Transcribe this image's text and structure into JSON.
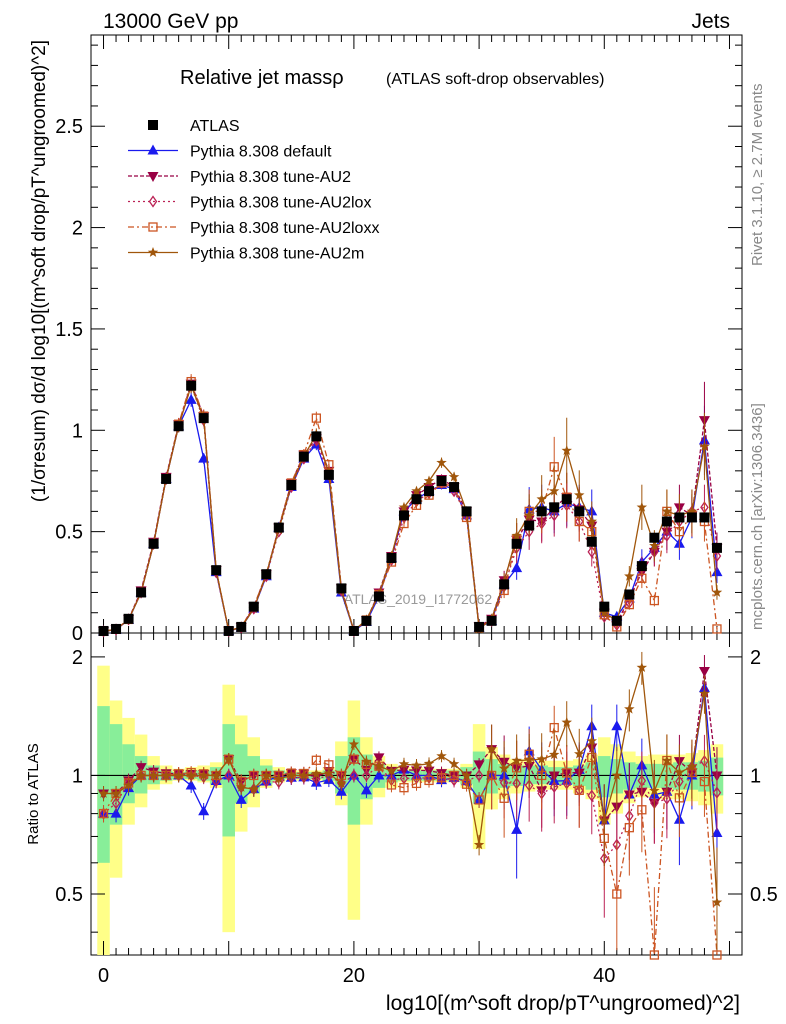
{
  "header": {
    "left": "13000 GeV pp",
    "right": "Jets"
  },
  "side_text": {
    "rivet": "Rivet 3.1.10, ≥ 2.7M events",
    "mcplots": "mcplots.cern.ch [arXiv:1306.3436]"
  },
  "watermark": "ATLAS_2019_I1772062",
  "chart_data": {
    "type": "line",
    "title": "Relative jet massρ",
    "subtitle": "(ATLAS soft-drop observables)",
    "xlabel": "log10[(m^soft drop/pT^ungroomed)^2]",
    "ylabel": "(1/σresum) dσ/d log10[(m^soft drop/pT^ungroomed)^2]",
    "ratio_ylabel": "Ratio to ATLAS",
    "xlim": [
      -1,
      51
    ],
    "ylim": [
      0,
      2.95
    ],
    "ratio_ylim": [
      0.35,
      2.3
    ],
    "x_ticks": [
      0,
      20,
      40
    ],
    "y_ticks": [
      "0",
      "0.5",
      "1",
      "1.5",
      "2",
      "2.5"
    ],
    "ratio_y_ticks": [
      "0.5",
      "1",
      "2"
    ],
    "x": [
      0,
      1,
      2,
      3,
      4,
      5,
      6,
      7,
      8,
      9,
      10,
      11,
      12,
      13,
      14,
      15,
      16,
      17,
      18,
      19,
      20,
      21,
      22,
      23,
      24,
      25,
      26,
      27,
      28,
      29,
      30,
      31,
      32,
      33,
      34,
      35,
      36,
      37,
      38,
      39,
      40,
      41,
      42,
      43,
      44,
      45,
      46,
      47,
      48,
      49
    ],
    "legend_position": "top-left",
    "series": [
      {
        "name": "ATLAS",
        "color": "#000000",
        "marker": "square",
        "dash": "none",
        "values": [
          0.01,
          0.02,
          0.07,
          0.2,
          0.44,
          0.76,
          1.02,
          1.22,
          1.06,
          0.31,
          0.01,
          0.03,
          0.13,
          0.29,
          0.52,
          0.73,
          0.87,
          0.97,
          0.78,
          0.22,
          0.01,
          0.06,
          0.18,
          0.37,
          0.58,
          0.66,
          0.7,
          0.75,
          0.72,
          0.6,
          0.03,
          0.06,
          0.24,
          0.44,
          0.53,
          0.6,
          0.62,
          0.66,
          0.6,
          0.45,
          0.13,
          0.06,
          0.19,
          0.33,
          0.47,
          0.55,
          0.57,
          0.57,
          0.57,
          0.42
        ]
      },
      {
        "name": "Pythia 8.308 default",
        "color": "#1a1aee",
        "marker": "triangle",
        "dash": "none",
        "values": [
          0.008,
          0.016,
          0.065,
          0.2,
          0.44,
          0.76,
          1.02,
          1.15,
          0.86,
          0.3,
          0.01,
          0.026,
          0.12,
          0.28,
          0.52,
          0.72,
          0.86,
          0.93,
          0.76,
          0.2,
          0.01,
          0.055,
          0.18,
          0.37,
          0.6,
          0.66,
          0.7,
          0.73,
          0.71,
          0.58,
          0.026,
          0.06,
          0.24,
          0.32,
          0.61,
          0.62,
          0.6,
          0.64,
          0.62,
          0.6,
          0.1,
          0.08,
          0.17,
          0.35,
          0.42,
          0.5,
          0.44,
          0.57,
          0.95,
          0.3
        ]
      },
      {
        "name": "Pythia 8.308 tune-AU2",
        "color": "#990044",
        "marker": "triangle-down",
        "dash": "4,2",
        "values": [
          0.009,
          0.018,
          0.068,
          0.21,
          0.45,
          0.77,
          1.03,
          1.23,
          1.07,
          0.31,
          0.011,
          0.029,
          0.13,
          0.29,
          0.52,
          0.74,
          0.88,
          0.96,
          0.8,
          0.22,
          0.011,
          0.062,
          0.2,
          0.38,
          0.6,
          0.68,
          0.72,
          0.76,
          0.72,
          0.6,
          0.032,
          0.07,
          0.26,
          0.46,
          0.56,
          0.55,
          0.62,
          0.67,
          0.61,
          0.53,
          0.1,
          0.05,
          0.17,
          0.3,
          0.4,
          0.5,
          0.62,
          0.58,
          1.05,
          0.42
        ]
      },
      {
        "name": "Pythia 8.308 tune-AU2lox",
        "color": "#bb2255",
        "marker": "diamond",
        "dash": "2,3",
        "values": [
          0.008,
          0.017,
          0.067,
          0.2,
          0.44,
          0.76,
          1.02,
          1.22,
          1.05,
          0.3,
          0.01,
          0.028,
          0.12,
          0.28,
          0.5,
          0.72,
          0.86,
          0.95,
          0.78,
          0.21,
          0.01,
          0.06,
          0.19,
          0.36,
          0.57,
          0.65,
          0.69,
          0.74,
          0.7,
          0.58,
          0.03,
          0.06,
          0.23,
          0.42,
          0.5,
          0.54,
          0.58,
          0.63,
          0.55,
          0.4,
          0.08,
          0.04,
          0.15,
          0.32,
          0.4,
          0.48,
          0.55,
          0.6,
          0.62,
          0.38
        ]
      },
      {
        "name": "Pythia 8.308 tune-AU2loxx",
        "color": "#cc5522",
        "marker": "square-open",
        "dash": "6,3,2,3",
        "values": [
          0.008,
          0.018,
          0.067,
          0.2,
          0.44,
          0.76,
          1.03,
          1.24,
          1.07,
          0.31,
          0.011,
          0.029,
          0.13,
          0.29,
          0.52,
          0.74,
          0.88,
          1.06,
          0.83,
          0.22,
          0.011,
          0.064,
          0.19,
          0.35,
          0.54,
          0.63,
          0.68,
          0.74,
          0.72,
          0.57,
          0.026,
          0.06,
          0.21,
          0.46,
          0.6,
          0.6,
          0.82,
          0.67,
          0.55,
          0.5,
          0.09,
          0.03,
          0.14,
          0.27,
          0.16,
          0.6,
          0.5,
          0.58,
          0.55,
          0.02
        ]
      },
      {
        "name": "Pythia 8.308 tune-AU2m",
        "color": "#a0560b",
        "marker": "star",
        "dash": "none",
        "values": [
          0.009,
          0.018,
          0.066,
          0.2,
          0.44,
          0.76,
          1.02,
          1.22,
          1.06,
          0.31,
          0.011,
          0.028,
          0.12,
          0.29,
          0.51,
          0.73,
          0.87,
          0.98,
          0.79,
          0.21,
          0.012,
          0.065,
          0.19,
          0.38,
          0.62,
          0.7,
          0.75,
          0.84,
          0.77,
          0.6,
          0.02,
          0.07,
          0.25,
          0.48,
          0.58,
          0.66,
          0.7,
          0.9,
          0.68,
          0.55,
          0.1,
          0.06,
          0.28,
          0.62,
          0.43,
          0.6,
          0.58,
          0.6,
          0.92,
          0.2
        ]
      }
    ],
    "ratio_band_outer": [
      [
        0.35,
        1.9
      ],
      [
        0.55,
        1.55
      ],
      [
        0.75,
        1.4
      ],
      [
        0.83,
        1.27
      ],
      [
        0.92,
        1.12
      ],
      [
        0.95,
        1.06
      ],
      [
        0.97,
        1.04
      ],
      [
        0.97,
        1.05
      ],
      [
        0.96,
        1.06
      ],
      [
        0.93,
        1.08
      ],
      [
        0.4,
        1.7
      ],
      [
        0.72,
        1.42
      ],
      [
        0.83,
        1.25
      ],
      [
        0.93,
        1.1
      ],
      [
        0.96,
        1.05
      ],
      [
        0.97,
        1.03
      ],
      [
        0.97,
        1.03
      ],
      [
        0.97,
        1.03
      ],
      [
        0.95,
        1.05
      ],
      [
        0.84,
        1.22
      ],
      [
        0.43,
        1.55
      ],
      [
        0.75,
        1.25
      ],
      [
        0.88,
        1.12
      ],
      [
        0.93,
        1.07
      ],
      [
        0.96,
        1.05
      ],
      [
        0.96,
        1.05
      ],
      [
        0.96,
        1.04
      ],
      [
        0.96,
        1.04
      ],
      [
        0.96,
        1.04
      ],
      [
        0.93,
        1.07
      ],
      [
        0.65,
        1.35
      ],
      [
        0.82,
        1.18
      ],
      [
        0.87,
        1.13
      ],
      [
        0.9,
        1.1
      ],
      [
        0.91,
        1.1
      ],
      [
        0.92,
        1.09
      ],
      [
        0.92,
        1.09
      ],
      [
        0.92,
        1.09
      ],
      [
        0.9,
        1.1
      ],
      [
        0.87,
        1.13
      ],
      [
        0.75,
        1.25
      ],
      [
        0.8,
        1.2
      ],
      [
        0.85,
        1.15
      ],
      [
        0.88,
        1.12
      ],
      [
        0.88,
        1.13
      ],
      [
        0.87,
        1.13
      ],
      [
        0.87,
        1.13
      ],
      [
        0.86,
        1.14
      ],
      [
        0.84,
        1.16
      ],
      [
        0.8,
        1.2
      ]
    ],
    "ratio_band_inner": [
      [
        0.6,
        1.5
      ],
      [
        0.75,
        1.35
      ],
      [
        0.85,
        1.2
      ],
      [
        0.9,
        1.12
      ],
      [
        0.95,
        1.06
      ],
      [
        0.97,
        1.03
      ],
      [
        0.98,
        1.02
      ],
      [
        0.98,
        1.03
      ],
      [
        0.97,
        1.03
      ],
      [
        0.95,
        1.05
      ],
      [
        0.7,
        1.35
      ],
      [
        0.85,
        1.2
      ],
      [
        0.9,
        1.12
      ],
      [
        0.95,
        1.06
      ],
      [
        0.97,
        1.03
      ],
      [
        0.98,
        1.02
      ],
      [
        0.98,
        1.02
      ],
      [
        0.98,
        1.02
      ],
      [
        0.97,
        1.03
      ],
      [
        0.9,
        1.12
      ],
      [
        0.75,
        1.25
      ],
      [
        0.87,
        1.13
      ],
      [
        0.93,
        1.07
      ],
      [
        0.96,
        1.04
      ],
      [
        0.97,
        1.03
      ],
      [
        0.97,
        1.03
      ],
      [
        0.97,
        1.03
      ],
      [
        0.97,
        1.03
      ],
      [
        0.97,
        1.03
      ],
      [
        0.95,
        1.05
      ],
      [
        0.85,
        1.15
      ],
      [
        0.9,
        1.1
      ],
      [
        0.93,
        1.07
      ],
      [
        0.94,
        1.06
      ],
      [
        0.95,
        1.06
      ],
      [
        0.95,
        1.06
      ],
      [
        0.95,
        1.05
      ],
      [
        0.95,
        1.05
      ],
      [
        0.94,
        1.06
      ],
      [
        0.92,
        1.08
      ],
      [
        0.88,
        1.12
      ],
      [
        0.9,
        1.1
      ],
      [
        0.92,
        1.08
      ],
      [
        0.93,
        1.07
      ],
      [
        0.93,
        1.07
      ],
      [
        0.93,
        1.07
      ],
      [
        0.92,
        1.08
      ],
      [
        0.92,
        1.08
      ],
      [
        0.91,
        1.09
      ],
      [
        0.89,
        1.11
      ]
    ]
  }
}
